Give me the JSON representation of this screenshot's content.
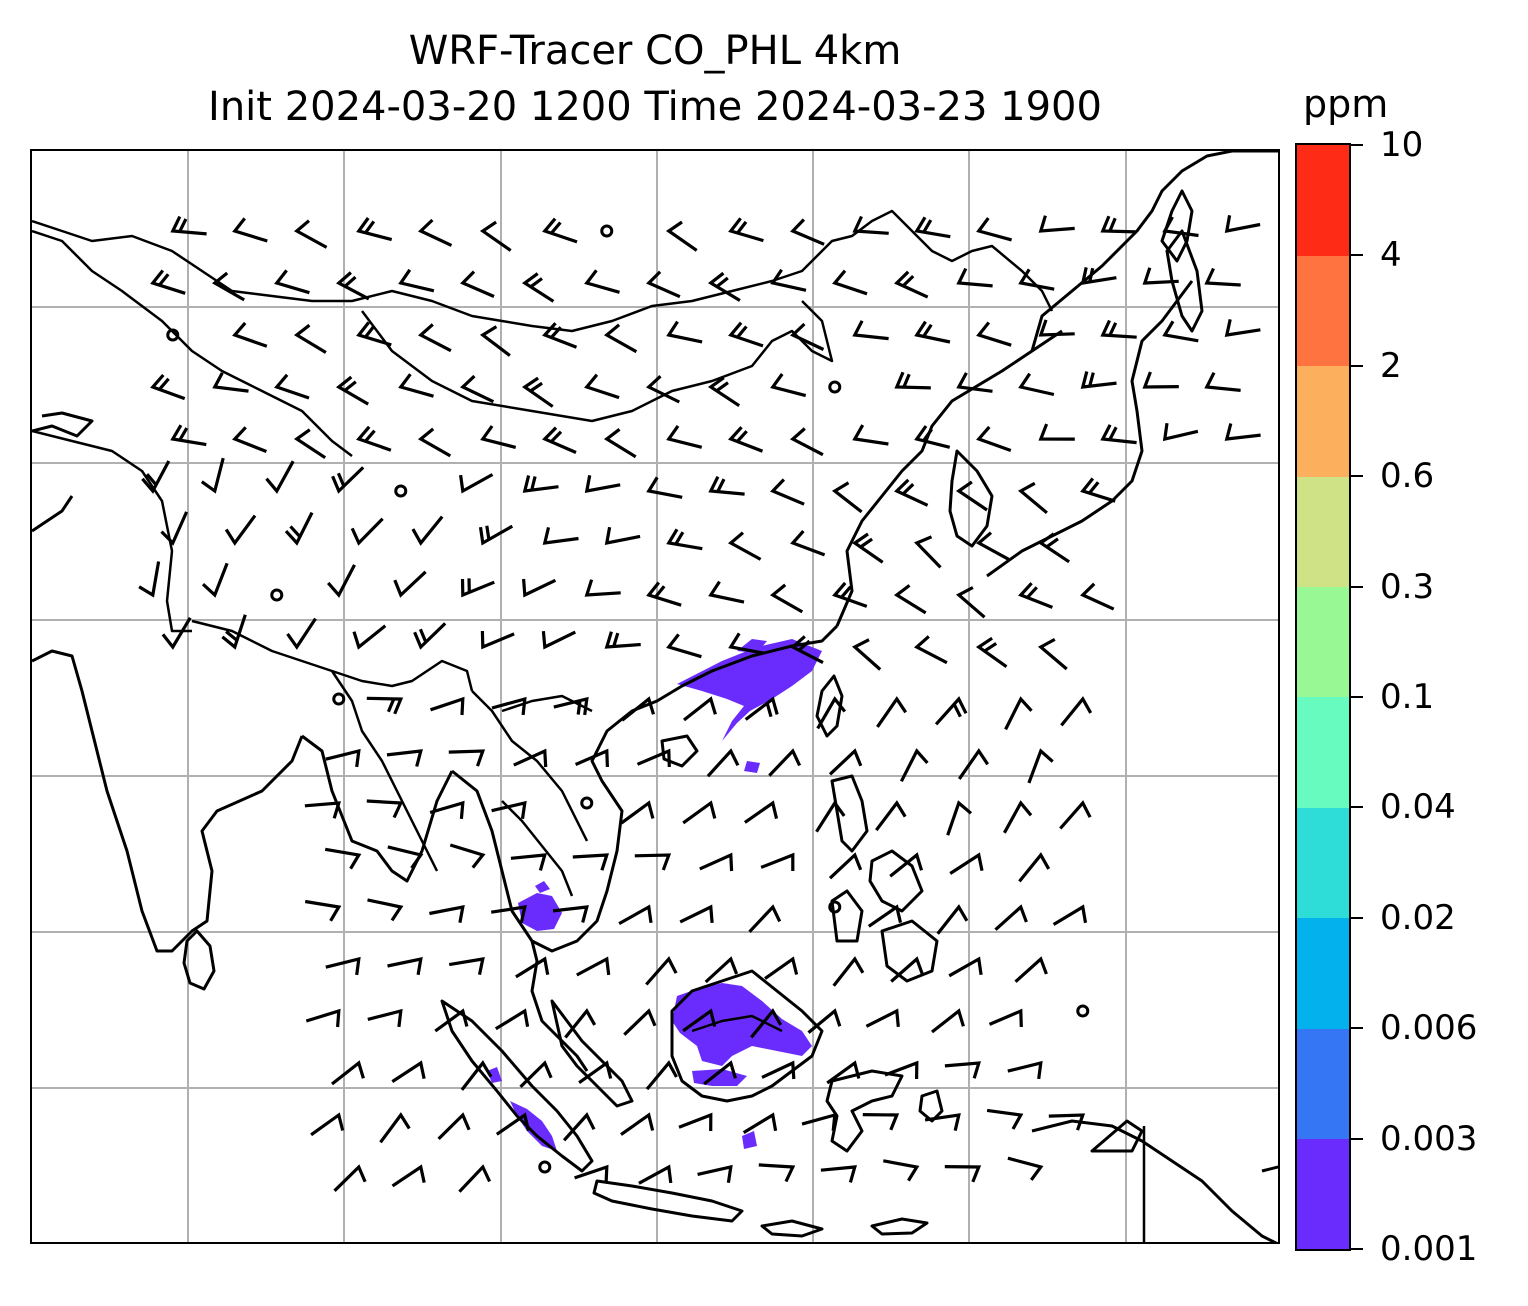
{
  "title": {
    "line1": "WRF-Tracer CO_PHL 4km",
    "line2": "Init 2024-03-20 1200 Time 2024-03-23 1900"
  },
  "colorbar": {
    "unit": "ppm",
    "levels": [
      "0.001",
      "0.003",
      "0.006",
      "0.02",
      "0.04",
      "0.1",
      "0.3",
      "0.6",
      "2",
      "4",
      "10"
    ],
    "colors": [
      "#6a2cfc",
      "#3476f4",
      "#03b1ec",
      "#2edcd8",
      "#67fbbf",
      "#98f994",
      "#cfe386",
      "#fcb05e",
      "#ff7340",
      "#fe2b16"
    ]
  },
  "map": {
    "region": "Asia / Maritime Continent",
    "gridlines": true,
    "plume_color": "#6a2cfc",
    "feature_color": "#000000",
    "gridline_color": "#b0b0b0"
  }
}
